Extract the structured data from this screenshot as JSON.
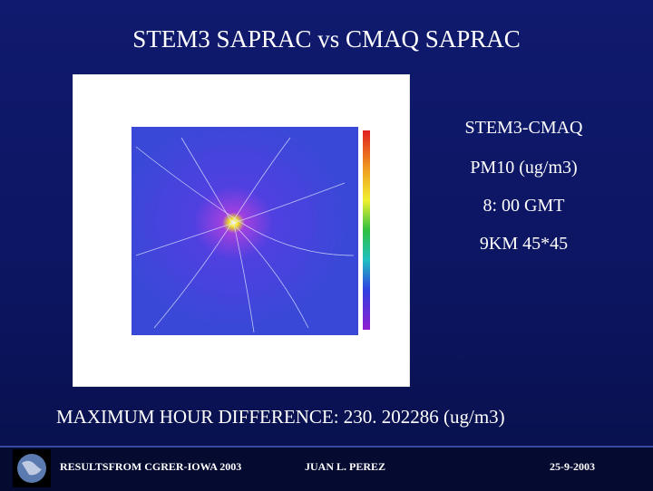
{
  "header": {
    "title": "STEM3 SAPRAC vs CMAQ SAPRAC"
  },
  "panel": {
    "lines": [
      "STEM3-CMAQ",
      "PM10 (ug/m3)",
      "8: 00 GMT",
      "9KM 45*45"
    ]
  },
  "summary": {
    "text": "MAXIMUM HOUR DIFFERENCE: 230. 202286   (ug/m3)"
  },
  "footer": {
    "left": "RESULTSFROM CGRER-IOWA 2003",
    "center": "JUAN L. PEREZ",
    "right": "25-9-2003"
  }
}
